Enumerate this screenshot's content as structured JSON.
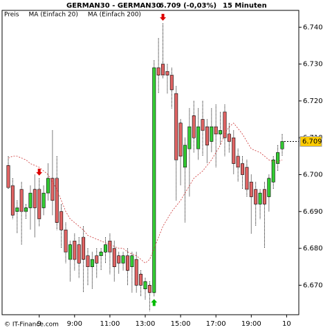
{
  "chart_data": {
    "type": "candlestick",
    "title": "GERMAN30 - GERMAN30",
    "subtitle": "6.709 (-0,03%)",
    "interval": "15 Minuten",
    "legend": [
      {
        "name": "Preis",
        "color": "#000000"
      },
      {
        "name": "MA (Einfach 20)",
        "color": "#cc3333"
      },
      {
        "name": "MA (Einfach 200)",
        "color": "#d96a6a"
      }
    ],
    "copyright": "© IT-Finance.com",
    "categories": [
      null,
      null,
      null,
      null,
      null,
      null,
      null,
      "9",
      null,
      null,
      null,
      null,
      null,
      null,
      null,
      "9:00",
      null,
      null,
      null,
      null,
      null,
      null,
      null,
      "11:00",
      null,
      null,
      null,
      null,
      null,
      null,
      null,
      "13:00",
      null,
      null,
      null,
      null,
      null,
      null,
      null,
      "15:00",
      null,
      null,
      null,
      null,
      null,
      null,
      null,
      "17:00",
      null,
      null,
      null,
      null,
      null,
      null,
      null,
      "19:00",
      null,
      null,
      null,
      null,
      null,
      null,
      null,
      "10"
    ],
    "series": [
      {
        "name": "Preis",
        "up_color": "#33cc33",
        "down_color": "#e06464",
        "open": [
          6.7025,
          6.697,
          6.69,
          6.696,
          6.69,
          6.691,
          6.696,
          6.696,
          6.691,
          6.695,
          6.699,
          6.699,
          6.69,
          6.685,
          6.677,
          6.682,
          6.681,
          6.683,
          6.678,
          6.675,
          6.678,
          6.678,
          6.679,
          6.682,
          6.68,
          6.678,
          6.676,
          6.678,
          6.675,
          6.677,
          6.673,
          6.669,
          6.67,
          6.668,
          6.729,
          6.73,
          6.728,
          6.727,
          6.722,
          6.714,
          6.702,
          6.707,
          6.716,
          6.707,
          6.715,
          6.713,
          6.709,
          6.713,
          6.711,
          6.717,
          6.711,
          6.71,
          6.705,
          6.703,
          6.702,
          6.698,
          6.696,
          6.692,
          6.696,
          6.694,
          6.698,
          6.703,
          6.707,
          null
        ],
        "high": [
          6.705,
          6.699,
          6.693,
          6.698,
          6.692,
          6.697,
          6.7,
          6.699,
          6.697,
          6.703,
          6.712,
          6.705,
          6.692,
          6.687,
          6.682,
          6.684,
          6.683,
          6.686,
          6.68,
          6.679,
          6.68,
          6.68,
          6.683,
          6.684,
          6.682,
          6.679,
          6.679,
          6.68,
          6.679,
          6.679,
          6.674,
          6.672,
          6.671,
          6.731,
          6.737,
          6.741,
          6.73,
          6.729,
          6.724,
          6.715,
          6.71,
          6.718,
          6.72,
          6.718,
          6.72,
          6.715,
          6.718,
          6.719,
          6.717,
          6.719,
          6.714,
          6.712,
          6.707,
          6.705,
          6.704,
          6.7,
          6.698,
          6.696,
          6.698,
          6.7,
          6.705,
          6.708,
          6.711,
          null
        ],
        "low": [
          6.696,
          6.688,
          6.684,
          6.681,
          6.688,
          6.685,
          6.683,
          6.686,
          6.689,
          6.693,
          6.689,
          6.685,
          6.68,
          6.676,
          6.671,
          6.674,
          6.672,
          6.668,
          6.67,
          6.669,
          6.672,
          6.674,
          6.676,
          6.673,
          6.671,
          6.673,
          6.674,
          6.67,
          6.668,
          6.668,
          6.667,
          6.666,
          6.663,
          6.667,
          6.722,
          6.726,
          6.722,
          6.718,
          6.693,
          6.697,
          6.687,
          6.694,
          6.706,
          6.704,
          6.705,
          6.703,
          6.706,
          6.702,
          6.708,
          6.705,
          6.706,
          6.7,
          6.698,
          6.696,
          6.694,
          6.684,
          6.686,
          6.688,
          6.68,
          6.69,
          6.696,
          6.701,
          6.705,
          null
        ],
        "close": [
          6.6965,
          6.689,
          6.691,
          6.69,
          6.691,
          6.695,
          6.691,
          6.688,
          6.695,
          6.699,
          6.693,
          6.687,
          6.685,
          6.679,
          6.681,
          6.677,
          6.676,
          6.677,
          6.675,
          6.677,
          6.676,
          6.679,
          6.681,
          6.679,
          6.675,
          6.676,
          6.678,
          6.674,
          6.678,
          6.67,
          6.67,
          6.671,
          6.668,
          6.729,
          6.727,
          6.727,
          6.727,
          6.723,
          6.704,
          6.705,
          6.708,
          6.713,
          6.71,
          6.713,
          6.712,
          6.708,
          6.713,
          6.711,
          6.712,
          6.71,
          6.709,
          6.703,
          6.702,
          6.7,
          6.696,
          6.694,
          6.692,
          6.695,
          6.692,
          6.699,
          6.704,
          6.706,
          6.709,
          null
        ]
      },
      {
        "name": "MA (Einfach 20)",
        "color": "#cc3333",
        "values": [
          6.7045,
          6.705,
          6.705,
          6.7045,
          6.704,
          6.703,
          6.7025,
          6.702,
          6.701,
          6.7,
          6.698,
          6.696,
          6.693,
          6.69,
          6.688,
          6.687,
          6.686,
          6.685,
          6.6835,
          6.683,
          6.6825,
          6.682,
          6.6815,
          6.681,
          6.6805,
          6.68,
          6.68,
          6.679,
          6.6785,
          6.678,
          6.677,
          6.676,
          6.677,
          6.68,
          6.683,
          6.686,
          6.688,
          6.69,
          6.6915,
          6.693,
          6.695,
          6.697,
          6.699,
          6.7,
          6.701,
          6.7025,
          6.704,
          6.706,
          6.708,
          6.711,
          6.713,
          6.714,
          6.7125,
          6.711,
          6.709,
          6.707,
          6.7065,
          6.706,
          6.705,
          6.704,
          6.7035,
          6.7035,
          6.704,
          null
        ]
      }
    ],
    "signals": [
      {
        "at": 7,
        "direction": "down",
        "color": "#dd0000"
      },
      {
        "at": 33,
        "direction": "up",
        "color": "#00bb00"
      },
      {
        "at": 35,
        "direction": "down",
        "color": "#dd0000"
      }
    ],
    "last_price": 6.709,
    "last_price_color": "#ffcc00",
    "ylim": [
      6.662,
      6.7425
    ],
    "yticks": [
      {
        "value": 6.67,
        "label": "6.670"
      },
      {
        "value": 6.68,
        "label": "6.680"
      },
      {
        "value": 6.69,
        "label": "6.690"
      },
      {
        "value": 6.7,
        "label": "6.700"
      },
      {
        "value": 6.71,
        "label": "6.710"
      },
      {
        "value": 6.72,
        "label": "6.720"
      },
      {
        "value": 6.73,
        "label": "6.730"
      },
      {
        "value": 6.74,
        "label": "6.740"
      }
    ],
    "grid": false
  }
}
